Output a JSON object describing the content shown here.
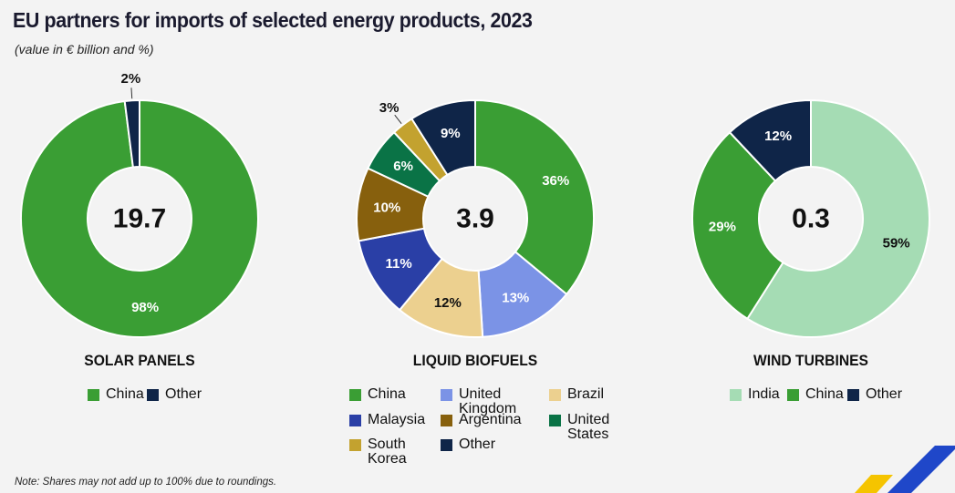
{
  "title": "EU partners for imports of selected energy products, 2023",
  "subtitle": "(value in € billion and %)",
  "note": "Note: Shares may not add up to 100% due to roundings.",
  "colors": {
    "China": "#3a9e34",
    "Other": "#0f2548",
    "United Kingdom": "#7b93e6",
    "Brazil": "#ecd08f",
    "Malaysia": "#2a3fa6",
    "Argentina": "#87600d",
    "United States": "#0a7346",
    "South Korea": "#c3a22f",
    "India": "#a5dcb4"
  },
  "chart_data": [
    {
      "type": "pie",
      "name": "SOLAR PANELS",
      "total": "19.7",
      "slices": [
        {
          "label": "China",
          "value": 98,
          "text": "98%"
        },
        {
          "label": "Other",
          "value": 2,
          "text": "2%"
        }
      ],
      "legend": [
        "China",
        "Other"
      ]
    },
    {
      "type": "pie",
      "name": "LIQUID BIOFUELS",
      "total": "3.9",
      "slices": [
        {
          "label": "China",
          "value": 36,
          "text": "36%"
        },
        {
          "label": "United Kingdom",
          "value": 13,
          "text": "13%"
        },
        {
          "label": "Brazil",
          "value": 12,
          "text": "12%"
        },
        {
          "label": "Malaysia",
          "value": 11,
          "text": "11%"
        },
        {
          "label": "Argentina",
          "value": 10,
          "text": "10%"
        },
        {
          "label": "United States",
          "value": 6,
          "text": "6%"
        },
        {
          "label": "South Korea",
          "value": 3,
          "text": "3%"
        },
        {
          "label": "Other",
          "value": 9,
          "text": "9%"
        }
      ],
      "legend": [
        "China",
        "United Kingdom",
        "Brazil",
        "Malaysia",
        "Argentina",
        "United States",
        "South Korea",
        "Other"
      ]
    },
    {
      "type": "pie",
      "name": "WIND TURBINES",
      "total": "0.3",
      "slices": [
        {
          "label": "India",
          "value": 59,
          "text": "59%"
        },
        {
          "label": "China",
          "value": 29,
          "text": "29%"
        },
        {
          "label": "Other",
          "value": 12,
          "text": "12%"
        }
      ],
      "legend": [
        "India",
        "China",
        "Other"
      ]
    }
  ]
}
